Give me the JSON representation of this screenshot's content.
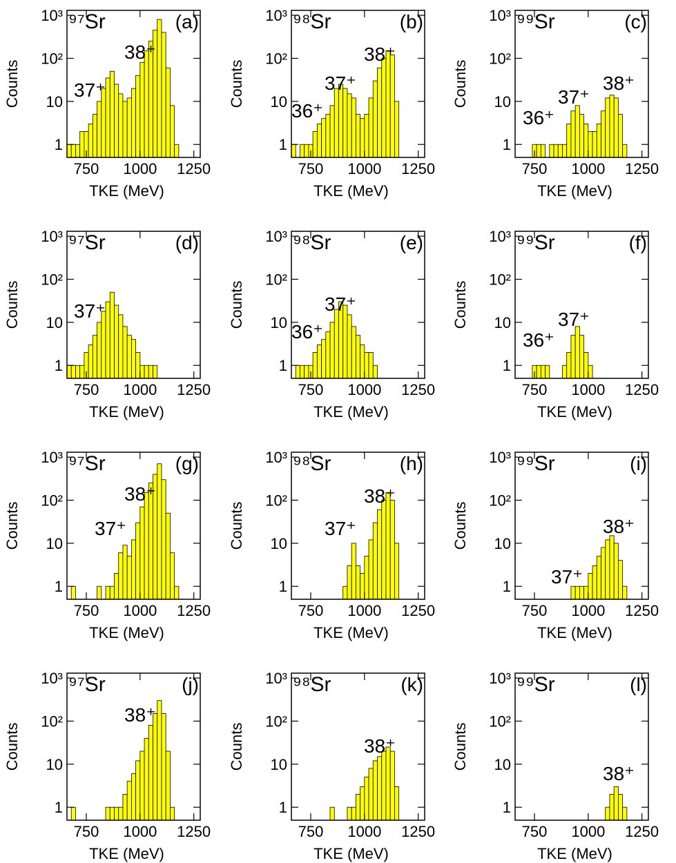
{
  "chart_data": [
    {
      "type": "histogram",
      "isotope": "⁹⁷Sr",
      "panel": "(a)",
      "labels": [
        "37⁺",
        "38⁺"
      ],
      "xlabel": "TKE (MeV)",
      "ylabel": "Counts",
      "color": "#ffff00",
      "log_y": true,
      "xlim": [
        660,
        1280
      ],
      "ylim": [
        0.5,
        1300
      ],
      "xticks": [
        750,
        1000,
        1250
      ],
      "yticks": [
        1,
        10,
        {
          "value": 100,
          "label": "10²"
        },
        {
          "value": 1000,
          "label": "10³"
        }
      ],
      "bins": [
        660,
        680,
        700,
        720,
        740,
        760,
        780,
        800,
        820,
        840,
        860,
        880,
        900,
        920,
        940,
        960,
        980,
        1000,
        1020,
        1040,
        1060,
        1080,
        1100,
        1120,
        1140,
        1160,
        1180,
        1200
      ],
      "values": [
        1,
        1,
        1,
        2,
        2,
        3,
        5,
        10,
        20,
        35,
        50,
        25,
        15,
        10,
        12,
        20,
        40,
        80,
        150,
        250,
        450,
        800,
        400,
        60,
        8,
        1,
        0
      ]
    },
    {
      "type": "histogram",
      "isotope": "⁹⁸Sr",
      "panel": "(b)",
      "labels": [
        "36⁺",
        "37⁺",
        "38⁺"
      ],
      "xlabel": "TKE (MeV)",
      "ylabel": "Counts",
      "color": "#ffff00",
      "log_y": true,
      "xlim": [
        660,
        1280
      ],
      "ylim": [
        0.5,
        1300
      ],
      "xticks": [
        750,
        1000,
        1250
      ],
      "yticks": [
        1,
        10,
        {
          "value": 100,
          "label": "10²"
        },
        {
          "value": 1000,
          "label": "10³"
        }
      ],
      "bins": [
        660,
        680,
        700,
        720,
        740,
        760,
        780,
        800,
        820,
        840,
        860,
        880,
        900,
        920,
        940,
        960,
        980,
        1000,
        1020,
        1040,
        1060,
        1080,
        1100,
        1120,
        1140,
        1160,
        1180,
        1200
      ],
      "values": [
        1,
        0,
        1,
        1,
        1,
        2,
        3,
        4,
        5,
        8,
        20,
        25,
        20,
        15,
        12,
        5,
        4,
        5,
        12,
        30,
        60,
        100,
        150,
        120,
        10,
        0,
        0
      ]
    },
    {
      "type": "histogram",
      "isotope": "⁹⁹Sr",
      "panel": "(c)",
      "labels": [
        "36⁺",
        "37⁺",
        "38⁺"
      ],
      "xlabel": "TKE (MeV)",
      "ylabel": "Counts",
      "color": "#ffff00",
      "log_y": true,
      "xlim": [
        660,
        1280
      ],
      "ylim": [
        0.5,
        1300
      ],
      "xticks": [
        750,
        1000,
        1250
      ],
      "yticks": [
        1,
        10,
        {
          "value": 100,
          "label": "10²"
        },
        {
          "value": 1000,
          "label": "10³"
        }
      ],
      "bins": [
        660,
        680,
        700,
        720,
        740,
        760,
        780,
        800,
        820,
        840,
        860,
        880,
        900,
        920,
        940,
        960,
        980,
        1000,
        1020,
        1040,
        1060,
        1080,
        1100,
        1120,
        1140,
        1160,
        1180,
        1200
      ],
      "values": [
        0,
        0,
        0,
        0,
        1,
        1,
        1,
        0,
        1,
        1,
        1,
        1,
        3,
        6,
        8,
        5,
        3,
        2,
        2,
        3,
        6,
        12,
        14,
        12,
        5,
        1,
        0
      ]
    },
    {
      "type": "histogram",
      "isotope": "⁹⁷Sr",
      "panel": "(d)",
      "labels": [
        "37⁺"
      ],
      "xlabel": "TKE (MeV)",
      "ylabel": "Counts",
      "color": "#ffff00",
      "log_y": true,
      "xlim": [
        660,
        1280
      ],
      "ylim": [
        0.5,
        1300
      ],
      "xticks": [
        750,
        1000,
        1250
      ],
      "yticks": [
        1,
        10,
        {
          "value": 100,
          "label": "10²"
        },
        {
          "value": 1000,
          "label": "10³"
        }
      ],
      "bins": [
        660,
        680,
        700,
        720,
        740,
        760,
        780,
        800,
        820,
        840,
        860,
        880,
        900,
        920,
        940,
        960,
        980,
        1000,
        1020,
        1040,
        1060,
        1080,
        1100,
        1120,
        1140,
        1160,
        1180,
        1200
      ],
      "values": [
        1,
        1,
        1,
        1,
        2,
        3,
        5,
        10,
        18,
        30,
        50,
        25,
        15,
        8,
        5,
        4,
        2,
        1,
        1,
        1,
        1,
        0,
        0,
        0,
        0,
        0,
        0
      ]
    },
    {
      "type": "histogram",
      "isotope": "⁹⁸Sr",
      "panel": "(e)",
      "labels": [
        "36⁺",
        "37⁺"
      ],
      "xlabel": "TKE (MeV)",
      "ylabel": "Counts",
      "color": "#ffff00",
      "log_y": true,
      "xlim": [
        660,
        1280
      ],
      "ylim": [
        0.5,
        1300
      ],
      "xticks": [
        750,
        1000,
        1250
      ],
      "yticks": [
        1,
        10,
        {
          "value": 100,
          "label": "10²"
        },
        {
          "value": 1000,
          "label": "10³"
        }
      ],
      "bins": [
        660,
        680,
        700,
        720,
        740,
        760,
        780,
        800,
        820,
        840,
        860,
        880,
        900,
        920,
        940,
        960,
        980,
        1000,
        1020,
        1040,
        1060,
        1080,
        1100,
        1120,
        1140,
        1160,
        1180,
        1200
      ],
      "values": [
        0,
        1,
        1,
        1,
        1,
        2,
        3,
        4,
        6,
        10,
        20,
        30,
        25,
        15,
        8,
        5,
        3,
        2,
        2,
        1,
        0,
        0,
        0,
        0,
        0,
        0,
        0
      ]
    },
    {
      "type": "histogram",
      "isotope": "⁹⁹Sr",
      "panel": "(f)",
      "labels": [
        "36⁺",
        "37⁺"
      ],
      "xlabel": "TKE (MeV)",
      "ylabel": "Counts",
      "color": "#ffff00",
      "log_y": true,
      "xlim": [
        660,
        1280
      ],
      "ylim": [
        0.5,
        1300
      ],
      "xticks": [
        750,
        1000,
        1250
      ],
      "yticks": [
        1,
        10,
        {
          "value": 100,
          "label": "10²"
        },
        {
          "value": 1000,
          "label": "10³"
        }
      ],
      "bins": [
        660,
        680,
        700,
        720,
        740,
        760,
        780,
        800,
        820,
        840,
        860,
        880,
        900,
        920,
        940,
        960,
        980,
        1000,
        1020,
        1040,
        1060,
        1080,
        1100,
        1120,
        1140,
        1160,
        1180,
        1200
      ],
      "values": [
        0,
        0,
        0,
        0,
        1,
        1,
        1,
        1,
        0,
        0,
        0,
        1,
        2,
        5,
        8,
        5,
        2,
        1,
        0,
        0,
        0,
        0,
        0,
        0,
        0,
        0,
        0
      ]
    },
    {
      "type": "histogram",
      "isotope": "⁹⁷Sr",
      "panel": "(g)",
      "labels": [
        "37⁺",
        "38⁺"
      ],
      "xlabel": "TKE (MeV)",
      "ylabel": "Counts",
      "color": "#ffff00",
      "log_y": true,
      "xlim": [
        660,
        1280
      ],
      "ylim": [
        0.5,
        1300
      ],
      "xticks": [
        750,
        1000,
        1250
      ],
      "yticks": [
        1,
        10,
        {
          "value": 100,
          "label": "10²"
        },
        {
          "value": 1000,
          "label": "10³"
        }
      ],
      "bins": [
        660,
        680,
        700,
        720,
        740,
        760,
        780,
        800,
        820,
        840,
        860,
        880,
        900,
        920,
        940,
        960,
        980,
        1000,
        1020,
        1040,
        1060,
        1080,
        1100,
        1120,
        1140,
        1160,
        1180,
        1200
      ],
      "values": [
        0,
        1,
        0,
        0,
        0,
        0,
        0,
        1,
        0,
        1,
        1,
        2,
        6,
        9,
        5,
        12,
        30,
        70,
        150,
        250,
        400,
        700,
        300,
        50,
        6,
        1,
        0
      ]
    },
    {
      "type": "histogram",
      "isotope": "⁹⁸Sr",
      "panel": "(h)",
      "labels": [
        "37⁺",
        "38⁺"
      ],
      "xlabel": "TKE (MeV)",
      "ylabel": "Counts",
      "color": "#ffff00",
      "log_y": true,
      "xlim": [
        660,
        1280
      ],
      "ylim": [
        0.5,
        1300
      ],
      "xticks": [
        750,
        1000,
        1250
      ],
      "yticks": [
        1,
        10,
        {
          "value": 100,
          "label": "10²"
        },
        {
          "value": 1000,
          "label": "10³"
        }
      ],
      "bins": [
        660,
        680,
        700,
        720,
        740,
        760,
        780,
        800,
        820,
        840,
        860,
        880,
        900,
        920,
        940,
        960,
        980,
        1000,
        1020,
        1040,
        1060,
        1080,
        1100,
        1120,
        1140,
        1160,
        1180,
        1200
      ],
      "values": [
        0,
        0,
        0,
        0,
        0,
        0,
        0,
        0,
        0,
        0,
        0,
        0,
        1,
        3,
        10,
        3,
        2,
        5,
        12,
        30,
        60,
        100,
        150,
        100,
        10,
        0,
        0
      ]
    },
    {
      "type": "histogram",
      "isotope": "⁹⁹Sr",
      "panel": "(i)",
      "labels": [
        "37⁺",
        "38⁺"
      ],
      "xlabel": "TKE (MeV)",
      "ylabel": "Counts",
      "color": "#ffff00",
      "log_y": true,
      "xlim": [
        660,
        1280
      ],
      "ylim": [
        0.5,
        1300
      ],
      "xticks": [
        750,
        1000,
        1250
      ],
      "yticks": [
        1,
        10,
        {
          "value": 100,
          "label": "10²"
        },
        {
          "value": 1000,
          "label": "10³"
        }
      ],
      "bins": [
        660,
        680,
        700,
        720,
        740,
        760,
        780,
        800,
        820,
        840,
        860,
        880,
        900,
        920,
        940,
        960,
        980,
        1000,
        1020,
        1040,
        1060,
        1080,
        1100,
        1120,
        1140,
        1160,
        1180,
        1200
      ],
      "values": [
        0,
        0,
        0,
        0,
        0,
        0,
        0,
        0,
        0,
        0,
        0,
        0,
        0,
        1,
        1,
        1,
        1,
        2,
        3,
        5,
        8,
        12,
        15,
        10,
        4,
        1,
        0
      ]
    },
    {
      "type": "histogram",
      "isotope": "⁹⁷Sr",
      "panel": "(j)",
      "labels": [
        "38⁺"
      ],
      "xlabel": "TKE (MeV)",
      "ylabel": "Counts",
      "color": "#ffff00",
      "log_y": true,
      "xlim": [
        660,
        1280
      ],
      "ylim": [
        0.5,
        1300
      ],
      "xticks": [
        750,
        1000,
        1250
      ],
      "yticks": [
        1,
        10,
        {
          "value": 100,
          "label": "10²"
        },
        {
          "value": 1000,
          "label": "10³"
        }
      ],
      "bins": [
        660,
        680,
        700,
        720,
        740,
        760,
        780,
        800,
        820,
        840,
        860,
        880,
        900,
        920,
        940,
        960,
        980,
        1000,
        1020,
        1040,
        1060,
        1080,
        1100,
        1120,
        1140,
        1160,
        1180,
        1200
      ],
      "values": [
        0,
        1,
        0,
        0,
        0,
        0,
        0,
        0,
        0,
        1,
        1,
        1,
        1,
        2,
        4,
        6,
        12,
        20,
        40,
        80,
        150,
        300,
        150,
        20,
        1,
        0,
        0
      ]
    },
    {
      "type": "histogram",
      "isotope": "⁹⁸Sr",
      "panel": "(k)",
      "labels": [
        "38⁺"
      ],
      "xlabel": "TKE (MeV)",
      "ylabel": "Counts",
      "color": "#ffff00",
      "log_y": true,
      "xlim": [
        660,
        1280
      ],
      "ylim": [
        0.5,
        1300
      ],
      "xticks": [
        750,
        1000,
        1250
      ],
      "yticks": [
        1,
        10,
        {
          "value": 100,
          "label": "10²"
        },
        {
          "value": 1000,
          "label": "10³"
        }
      ],
      "bins": [
        660,
        680,
        700,
        720,
        740,
        760,
        780,
        800,
        820,
        840,
        860,
        880,
        900,
        920,
        940,
        960,
        980,
        1000,
        1020,
        1040,
        1060,
        1080,
        1100,
        1120,
        1140,
        1160,
        1180,
        1200
      ],
      "values": [
        0,
        0,
        0,
        0,
        0,
        0,
        0,
        0,
        0,
        1,
        0,
        0,
        0,
        1,
        1,
        2,
        3,
        5,
        8,
        12,
        15,
        20,
        25,
        20,
        3,
        0,
        0
      ]
    },
    {
      "type": "histogram",
      "isotope": "⁹⁹Sr",
      "panel": "(l)",
      "labels": [
        "38⁺"
      ],
      "xlabel": "TKE (MeV)",
      "ylabel": "Counts",
      "color": "#ffff00",
      "log_y": true,
      "xlim": [
        660,
        1280
      ],
      "ylim": [
        0.5,
        1300
      ],
      "xticks": [
        750,
        1000,
        1250
      ],
      "yticks": [
        1,
        10,
        {
          "value": 100,
          "label": "10²"
        },
        {
          "value": 1000,
          "label": "10³"
        }
      ],
      "bins": [
        660,
        680,
        700,
        720,
        740,
        760,
        780,
        800,
        820,
        840,
        860,
        880,
        900,
        920,
        940,
        960,
        980,
        1000,
        1020,
        1040,
        1060,
        1080,
        1100,
        1120,
        1140,
        1160,
        1180,
        1200
      ],
      "values": [
        0,
        0,
        0,
        0,
        0,
        0,
        0,
        0,
        0,
        0,
        0,
        0,
        0,
        0,
        0,
        0,
        0,
        0,
        0,
        0,
        0,
        1,
        2,
        3,
        2,
        1,
        0
      ]
    }
  ]
}
